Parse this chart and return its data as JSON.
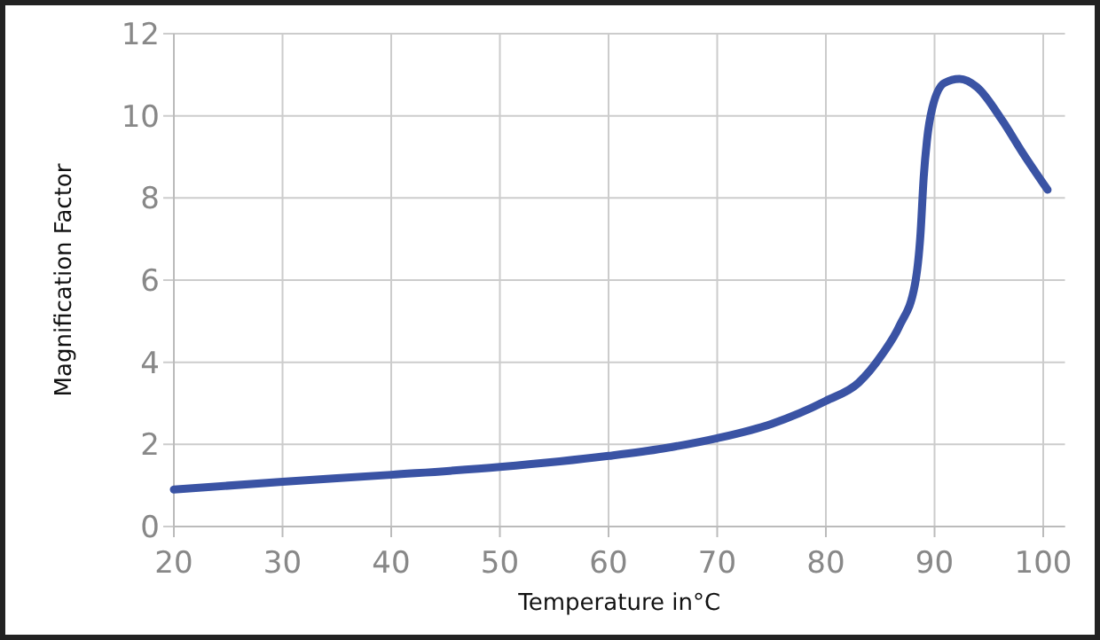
{
  "chart_data": {
    "type": "line",
    "xlabel": "Temperature in°C",
    "ylabel": "Magnification Factor",
    "xlim": [
      20,
      102
    ],
    "xticks": [
      20,
      30,
      40,
      50,
      60,
      70,
      80,
      90,
      100
    ],
    "ylim": [
      0,
      12
    ],
    "yticks": [
      0,
      2,
      4,
      6,
      8,
      10,
      12
    ],
    "grid": true,
    "marker": "none",
    "line_style": "solid",
    "series": [
      {
        "color": "#3a53a4",
        "x": [
          20,
          30,
          40,
          50,
          60,
          65,
          70,
          75,
          80,
          83,
          85.2,
          86.8,
          88.2,
          88.7,
          89,
          89.3,
          89.8,
          90.9,
          92.3,
          93.9,
          96.2,
          98.1,
          100.4
        ],
        "values": [
          0.9,
          1.09,
          1.26,
          1.45,
          1.72,
          1.9,
          2.15,
          2.5,
          3.06,
          3.5,
          4.2,
          4.9,
          5.9,
          7.1,
          8.5,
          9.4,
          10.2,
          10.8,
          10.9,
          10.7,
          9.9,
          9.1,
          8.2
        ]
      }
    ]
  }
}
